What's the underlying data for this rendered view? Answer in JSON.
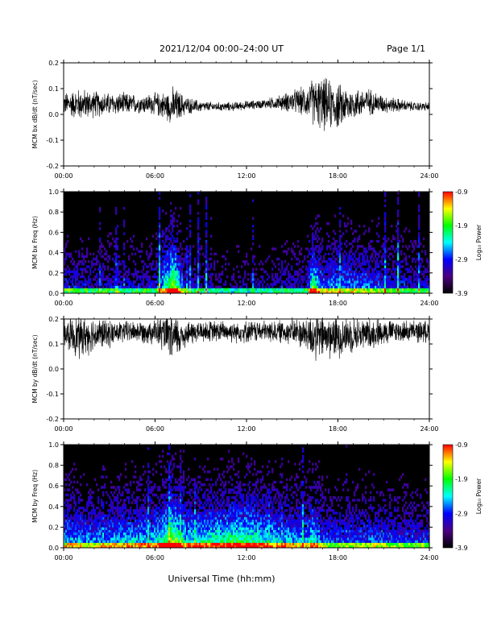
{
  "header": {
    "title": "2021/12/04  00:00–24:00 UT",
    "page": "Page 1/1"
  },
  "footer": {
    "xlabel": "Universal Time (hh:mm)"
  },
  "colors": {
    "background": "#ffffff",
    "trace": "#000000",
    "colormap": [
      "#000000",
      "#4b0082",
      "#0000ff",
      "#00ffff",
      "#00ff00",
      "#ffff00",
      "#ff0000"
    ]
  },
  "chart_data": [
    {
      "type": "line",
      "ylabel": "MCM bx dB/dt (nT/sec)",
      "xlim_hours": [
        0,
        24
      ],
      "ylim": [
        -0.2,
        0.2
      ],
      "x_ticks": [
        "00:00",
        "06:00",
        "12:00",
        "18:00",
        "24:00"
      ],
      "y_ticks": [
        "-0.2",
        "-0.1",
        "0.0",
        "0.1",
        "0.2"
      ],
      "series": [
        {
          "x_hours": [
            0,
            1,
            2,
            3,
            4,
            5,
            6,
            7,
            7.2,
            8,
            9,
            10,
            11,
            12,
            13,
            14,
            15,
            16,
            16.3,
            17,
            18,
            19,
            20,
            21,
            22,
            23,
            24
          ],
          "baseline": [
            0.04,
            0.04,
            0.04,
            0.04,
            0.04,
            0.04,
            0.04,
            0.03,
            0.03,
            0.035,
            0.03,
            0.03,
            0.03,
            0.035,
            0.04,
            0.045,
            0.05,
            0.05,
            0.05,
            0.04,
            0.03,
            0.04,
            0.05,
            0.04,
            0.035,
            0.03,
            0.03
          ],
          "amplitude": [
            0.05,
            0.07,
            0.06,
            0.05,
            0.05,
            0.04,
            0.05,
            0.07,
            0.09,
            0.04,
            0.025,
            0.02,
            0.02,
            0.02,
            0.02,
            0.03,
            0.05,
            0.07,
            0.1,
            0.12,
            0.1,
            0.07,
            0.06,
            0.04,
            0.03,
            0.02,
            0.02
          ]
        }
      ]
    },
    {
      "type": "heatmap",
      "ylabel": "MCM bx Freq (Hz)",
      "xlim_hours": [
        0,
        24
      ],
      "ylim": [
        0.0,
        1.0
      ],
      "x_ticks": [
        "00:00",
        "06:00",
        "12:00",
        "18:00",
        "24:00"
      ],
      "y_ticks": [
        "0.0",
        "0.2",
        "0.4",
        "0.6",
        "0.8",
        "1.0"
      ],
      "colorbar": {
        "label": "Log₁₀ Power",
        "min": -3.9,
        "max": -0.9,
        "ticks": [
          "-0.9",
          "-1.9",
          "-2.9",
          "-3.9"
        ]
      },
      "activity_hours": [
        0,
        2,
        4,
        6,
        7.2,
        8,
        10,
        12,
        14,
        16,
        16.3,
        17,
        18,
        20,
        22,
        24
      ],
      "activity_level": [
        0.35,
        0.3,
        0.3,
        0.3,
        0.95,
        0.3,
        0.2,
        0.2,
        0.25,
        0.3,
        0.8,
        0.45,
        0.5,
        0.45,
        0.35,
        0.3
      ]
    },
    {
      "type": "line",
      "ylabel": "MCM by dB/dt (nT/sec)",
      "xlim_hours": [
        0,
        24
      ],
      "ylim": [
        -0.2,
        0.2
      ],
      "x_ticks": [
        "00:00",
        "06:00",
        "12:00",
        "18:00",
        "24:00"
      ],
      "y_ticks": [
        "-0.2",
        "-0.1",
        "0.0",
        "0.1",
        "0.2"
      ],
      "series": [
        {
          "x_hours": [
            0,
            1,
            2,
            3,
            4,
            5,
            6,
            7,
            7.2,
            8,
            9,
            10,
            11,
            12,
            13,
            14,
            15,
            16,
            16.3,
            17,
            18,
            19,
            20,
            21,
            22,
            23,
            24
          ],
          "baseline": [
            0.14,
            0.13,
            0.14,
            0.14,
            0.15,
            0.15,
            0.15,
            0.13,
            0.12,
            0.14,
            0.15,
            0.15,
            0.15,
            0.15,
            0.15,
            0.15,
            0.15,
            0.14,
            0.13,
            0.13,
            0.13,
            0.14,
            0.14,
            0.15,
            0.15,
            0.15,
            0.15
          ],
          "amplitude": [
            0.06,
            0.1,
            0.08,
            0.06,
            0.05,
            0.05,
            0.06,
            0.1,
            0.12,
            0.06,
            0.05,
            0.05,
            0.05,
            0.05,
            0.05,
            0.05,
            0.06,
            0.08,
            0.12,
            0.1,
            0.1,
            0.08,
            0.07,
            0.06,
            0.05,
            0.05,
            0.05
          ]
        }
      ]
    },
    {
      "type": "heatmap",
      "ylabel": "MCM by Freq (Hz)",
      "xlim_hours": [
        0,
        24
      ],
      "ylim": [
        0.0,
        1.0
      ],
      "x_ticks": [
        "00:00",
        "06:00",
        "12:00",
        "18:00",
        "24:00"
      ],
      "y_ticks": [
        "0.0",
        "0.2",
        "0.4",
        "0.6",
        "0.8",
        "1.0"
      ],
      "colorbar": {
        "label": "Log₁₀ Power",
        "min": -3.9,
        "max": -0.9,
        "ticks": [
          "-0.9",
          "-1.9",
          "-2.9",
          "-3.9"
        ]
      },
      "activity_hours": [
        0,
        2,
        4,
        6,
        7.2,
        8,
        10,
        12,
        14,
        16,
        16.3,
        17,
        18,
        20,
        22,
        24
      ],
      "activity_level": [
        0.55,
        0.5,
        0.55,
        0.6,
        0.9,
        0.6,
        0.7,
        0.75,
        0.6,
        0.5,
        0.7,
        0.45,
        0.4,
        0.45,
        0.4,
        0.4
      ]
    }
  ]
}
